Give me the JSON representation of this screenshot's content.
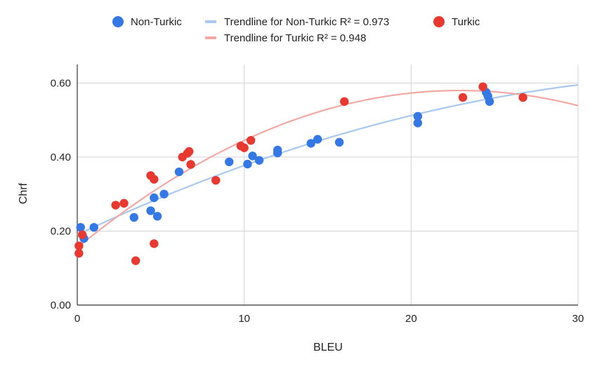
{
  "chart_data": {
    "type": "scatter",
    "xlabel": "BLEU",
    "ylabel": "Chrf",
    "xlim": [
      0,
      30
    ],
    "ylim": [
      0,
      0.65
    ],
    "x_ticks": [
      0,
      10,
      20,
      30
    ],
    "x_tick_labels": [
      "0",
      "10",
      "20",
      "30"
    ],
    "y_ticks": [
      0,
      0.2,
      0.4,
      0.6
    ],
    "y_tick_labels": [
      "0.00",
      "0.20",
      "0.40",
      "0.60"
    ],
    "grid": true,
    "legend_position": "top",
    "series": [
      {
        "name": "Non-Turkic",
        "color": "#3478e5",
        "points": [
          [
            0.2,
            0.21
          ],
          [
            0.4,
            0.18
          ],
          [
            1.0,
            0.21
          ],
          [
            3.4,
            0.237
          ],
          [
            4.4,
            0.255
          ],
          [
            4.6,
            0.29
          ],
          [
            4.8,
            0.24
          ],
          [
            5.2,
            0.3
          ],
          [
            6.1,
            0.36
          ],
          [
            9.1,
            0.387
          ],
          [
            10.2,
            0.381
          ],
          [
            10.5,
            0.403
          ],
          [
            10.9,
            0.391
          ],
          [
            12.0,
            0.411
          ],
          [
            12.0,
            0.419
          ],
          [
            14.0,
            0.437
          ],
          [
            14.4,
            0.448
          ],
          [
            15.7,
            0.44
          ],
          [
            20.4,
            0.51
          ],
          [
            20.4,
            0.492
          ],
          [
            24.5,
            0.575
          ],
          [
            24.6,
            0.565
          ],
          [
            24.7,
            0.55
          ]
        ]
      },
      {
        "name": "Turkic",
        "color": "#e8382f",
        "points": [
          [
            0.1,
            0.16
          ],
          [
            0.1,
            0.14
          ],
          [
            0.3,
            0.19
          ],
          [
            2.3,
            0.27
          ],
          [
            2.8,
            0.275
          ],
          [
            3.5,
            0.12
          ],
          [
            4.4,
            0.35
          ],
          [
            4.6,
            0.34
          ],
          [
            4.6,
            0.166
          ],
          [
            6.3,
            0.4
          ],
          [
            6.6,
            0.41
          ],
          [
            6.7,
            0.415
          ],
          [
            6.8,
            0.38
          ],
          [
            8.3,
            0.337
          ],
          [
            9.8,
            0.43
          ],
          [
            10.0,
            0.425
          ],
          [
            10.4,
            0.445
          ],
          [
            16.0,
            0.55
          ],
          [
            23.1,
            0.561
          ],
          [
            24.3,
            0.59
          ],
          [
            26.7,
            0.561
          ]
        ]
      }
    ],
    "trendlines": [
      {
        "name": "Trendline for Non-Turkic R² = 0.973",
        "color": "#a9c8f0",
        "type": "polynomial",
        "coefficients": [
          0.19,
          0.0213,
          -0.00026
        ]
      },
      {
        "name": "Trendline for Turkic R² = 0.948",
        "color": "#f3a8a3",
        "type": "polynomial",
        "coefficients": [
          0.155,
          0.0371,
          -0.00081
        ]
      }
    ],
    "legend": [
      {
        "label": "Non-Turkic",
        "kind": "dot",
        "color": "#3478e5"
      },
      {
        "label": "Trendline for Non-Turkic R² = 0.973",
        "kind": "line",
        "color": "#a9c8f0"
      },
      {
        "label": "Turkic",
        "kind": "dot",
        "color": "#e8382f"
      },
      {
        "label": "Trendline for Turkic R² = 0.948",
        "kind": "line",
        "color": "#f3a8a3"
      }
    ]
  }
}
